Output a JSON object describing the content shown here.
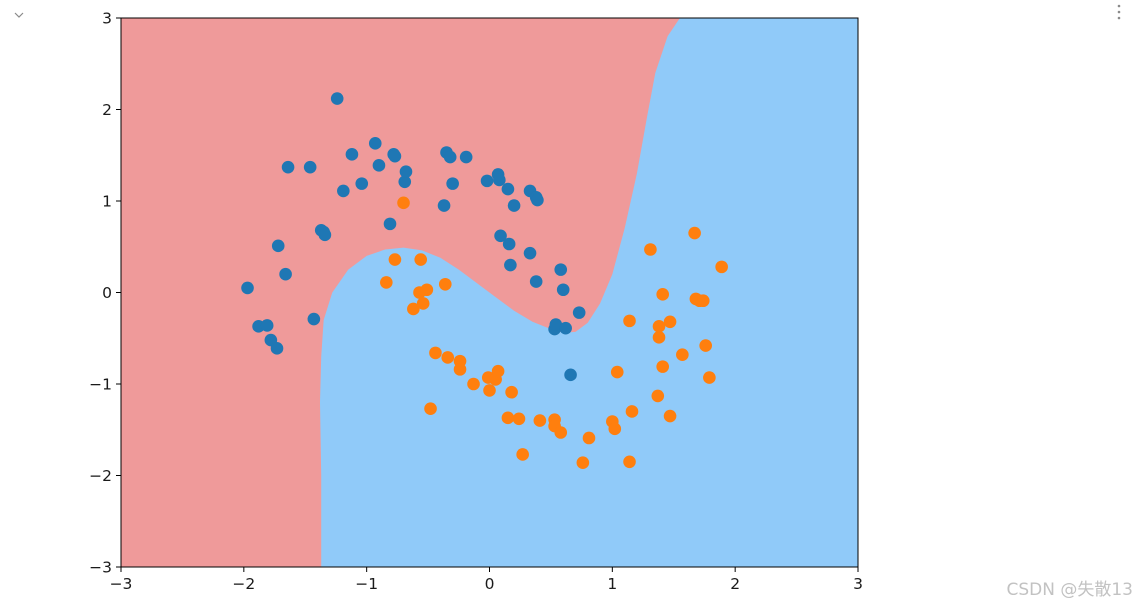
{
  "watermark": "CSDN @失散13",
  "icons": {
    "collapse": "chevron-down-icon",
    "more": "more-vertical-icon"
  },
  "chart_data": {
    "type": "scatter",
    "title": "",
    "xlabel": "",
    "ylabel": "",
    "xlim": [
      -3,
      3
    ],
    "ylim": [
      -3,
      3
    ],
    "xticks": [
      "−3",
      "−2",
      "−1",
      "0",
      "1",
      "2",
      "3"
    ],
    "yticks": [
      "−3",
      "−2",
      "−1",
      "0",
      "1",
      "2",
      "3"
    ],
    "grid": false,
    "legend": "none",
    "regions": [
      {
        "name": "class-0-region",
        "color": "#ef9a9a"
      },
      {
        "name": "class-1-region",
        "color": "#90caf9"
      }
    ],
    "boundary": [
      [
        -1.37,
        -3
      ],
      [
        -1.37,
        -2.0
      ],
      [
        -1.38,
        -1.2
      ],
      [
        -1.37,
        -0.7
      ],
      [
        -1.35,
        -0.3
      ],
      [
        -1.28,
        0.0
      ],
      [
        -1.15,
        0.25
      ],
      [
        -1.0,
        0.4
      ],
      [
        -0.85,
        0.47
      ],
      [
        -0.7,
        0.49
      ],
      [
        -0.55,
        0.46
      ],
      [
        -0.4,
        0.38
      ],
      [
        -0.25,
        0.25
      ],
      [
        -0.1,
        0.1
      ],
      [
        0.05,
        -0.05
      ],
      [
        0.2,
        -0.2
      ],
      [
        0.35,
        -0.32
      ],
      [
        0.5,
        -0.4
      ],
      [
        0.6,
        -0.44
      ],
      [
        0.7,
        -0.43
      ],
      [
        0.8,
        -0.33
      ],
      [
        0.9,
        -0.12
      ],
      [
        1.0,
        0.2
      ],
      [
        1.1,
        0.7
      ],
      [
        1.2,
        1.3
      ],
      [
        1.28,
        1.9
      ],
      [
        1.35,
        2.4
      ],
      [
        1.45,
        2.8
      ],
      [
        1.55,
        3.0
      ]
    ],
    "series": [
      {
        "color": "#1f77b4",
        "points": [
          [
            -1.97,
            0.05
          ],
          [
            -1.88,
            -0.37
          ],
          [
            -1.81,
            -0.36
          ],
          [
            -1.78,
            -0.52
          ],
          [
            -1.73,
            -0.61
          ],
          [
            -1.72,
            0.51
          ],
          [
            -1.66,
            0.2
          ],
          [
            -1.64,
            1.37
          ],
          [
            -1.46,
            1.37
          ],
          [
            -1.43,
            -0.29
          ],
          [
            -1.37,
            0.68
          ],
          [
            -1.35,
            0.66
          ],
          [
            -1.34,
            0.63
          ],
          [
            -1.24,
            2.12
          ],
          [
            -1.19,
            1.11
          ],
          [
            -1.12,
            1.51
          ],
          [
            -1.04,
            1.19
          ],
          [
            -0.93,
            1.63
          ],
          [
            -0.9,
            1.39
          ],
          [
            -0.81,
            0.75
          ],
          [
            -0.78,
            1.51
          ],
          [
            -0.77,
            1.49
          ],
          [
            -0.69,
            1.21
          ],
          [
            -0.68,
            1.32
          ],
          [
            -0.37,
            0.95
          ],
          [
            -0.35,
            1.53
          ],
          [
            -0.32,
            1.48
          ],
          [
            -0.3,
            1.19
          ],
          [
            -0.19,
            1.48
          ],
          [
            -0.02,
            1.22
          ],
          [
            0.07,
            1.29
          ],
          [
            0.08,
            1.23
          ],
          [
            0.09,
            0.62
          ],
          [
            0.15,
            1.13
          ],
          [
            0.16,
            0.53
          ],
          [
            0.17,
            0.3
          ],
          [
            0.2,
            0.95
          ],
          [
            0.33,
            0.43
          ],
          [
            0.33,
            1.11
          ],
          [
            0.38,
            0.12
          ],
          [
            0.38,
            1.04
          ],
          [
            0.39,
            1.01
          ],
          [
            0.53,
            -0.4
          ],
          [
            0.54,
            -0.35
          ],
          [
            0.58,
            0.25
          ],
          [
            0.6,
            0.03
          ],
          [
            0.62,
            -0.39
          ],
          [
            0.66,
            -0.9
          ],
          [
            0.73,
            -0.22
          ]
        ]
      },
      {
        "color": "#ff7f0e",
        "points": [
          [
            -0.84,
            0.11
          ],
          [
            -0.77,
            0.36
          ],
          [
            -0.7,
            0.98
          ],
          [
            -0.62,
            -0.18
          ],
          [
            -0.57,
            0.0
          ],
          [
            -0.56,
            0.36
          ],
          [
            -0.54,
            -0.12
          ],
          [
            -0.51,
            0.03
          ],
          [
            -0.48,
            -1.27
          ],
          [
            -0.44,
            -0.66
          ],
          [
            -0.36,
            0.09
          ],
          [
            -0.34,
            -0.71
          ],
          [
            -0.24,
            -0.75
          ],
          [
            -0.24,
            -0.84
          ],
          [
            -0.13,
            -1.0
          ],
          [
            -0.01,
            -0.93
          ],
          [
            0.0,
            -1.07
          ],
          [
            0.05,
            -0.95
          ],
          [
            0.07,
            -0.86
          ],
          [
            0.15,
            -1.37
          ],
          [
            0.18,
            -1.09
          ],
          [
            0.24,
            -1.38
          ],
          [
            0.27,
            -1.77
          ],
          [
            0.41,
            -1.4
          ],
          [
            0.53,
            -1.39
          ],
          [
            0.53,
            -1.46
          ],
          [
            0.58,
            -1.53
          ],
          [
            0.76,
            -1.86
          ],
          [
            0.81,
            -1.59
          ],
          [
            1.0,
            -1.41
          ],
          [
            1.02,
            -1.49
          ],
          [
            1.04,
            -0.87
          ],
          [
            1.14,
            -1.85
          ],
          [
            1.14,
            -0.31
          ],
          [
            1.16,
            -1.3
          ],
          [
            1.31,
            0.47
          ],
          [
            1.37,
            -1.13
          ],
          [
            1.38,
            -0.49
          ],
          [
            1.38,
            -0.37
          ],
          [
            1.41,
            -0.81
          ],
          [
            1.41,
            -0.02
          ],
          [
            1.47,
            -1.35
          ],
          [
            1.47,
            -0.32
          ],
          [
            1.57,
            -0.68
          ],
          [
            1.67,
            0.65
          ],
          [
            1.68,
            -0.07
          ],
          [
            1.71,
            -0.09
          ],
          [
            1.74,
            -0.09
          ],
          [
            1.76,
            -0.58
          ],
          [
            1.79,
            -0.93
          ],
          [
            1.89,
            0.28
          ]
        ]
      }
    ]
  }
}
